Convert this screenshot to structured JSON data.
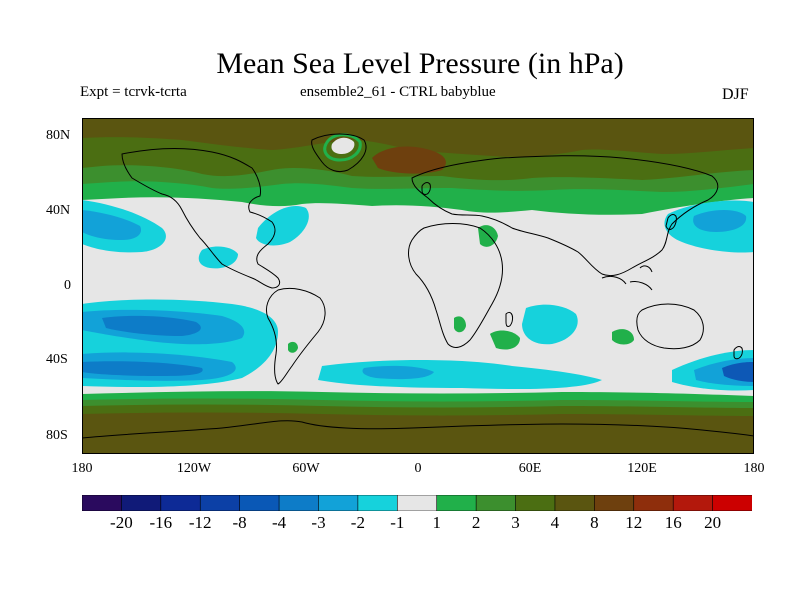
{
  "header": {
    "title": "Mean Sea Level Pressure (in hPa)",
    "expt": "Expt = tcrvk-tcrta",
    "ensemble": "ensemble2_61 - CTRL babyblue",
    "season": "DJF"
  },
  "axes": {
    "lat_labels": [
      "80N",
      "40N",
      "0",
      "40S",
      "80S"
    ],
    "lat_values": [
      80,
      40,
      0,
      -40,
      -80
    ],
    "lon_labels": [
      "180",
      "120W",
      "60W",
      "0",
      "60E",
      "120E",
      "180"
    ],
    "lon_values": [
      -180,
      -120,
      -60,
      0,
      60,
      120,
      180
    ],
    "lat_range": [
      -90,
      90
    ],
    "lon_range": [
      -180,
      180
    ]
  },
  "colorbar": {
    "colors": [
      "#2a0a5e",
      "#101a78",
      "#0d2a96",
      "#0c40a6",
      "#0a58b6",
      "#0d7cc8",
      "#12a2d8",
      "#16d2dc",
      "#e6e6e6",
      "#21b04a",
      "#3c8f2e",
      "#4b6e12",
      "#5a5510",
      "#6e400e",
      "#8e2e0c",
      "#b3180c",
      "#cc0000"
    ],
    "labels": [
      "-20",
      "-16",
      "-12",
      "-8",
      "-4",
      "-3",
      "-2",
      "-1",
      "1",
      "2",
      "3",
      "4",
      "8",
      "12",
      "16",
      "20"
    ]
  },
  "colors": {
    "land_background": "#e6e6e6",
    "coastline": "#000000"
  }
}
